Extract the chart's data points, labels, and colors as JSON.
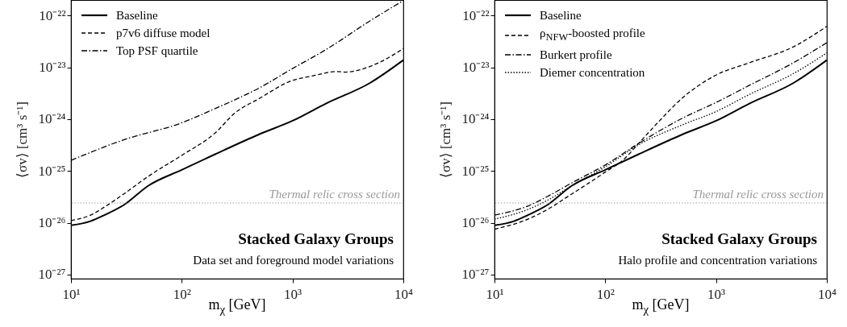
{
  "chart_data": [
    {
      "type": "line",
      "xlabel": "m$_{χ}$ [GeV]",
      "ylabel": "⟨σv⟩ [cm³ s⁻¹]",
      "log": "xy",
      "legend": "top left",
      "xlim": [
        10,
        10000
      ],
      "xticks": [
        {
          "value": 10,
          "label": "10¹"
        },
        {
          "value": 100,
          "label": "10²"
        },
        {
          "value": 1000,
          "label": "10³"
        },
        {
          "value": 10000,
          "label": "10⁴"
        }
      ],
      "ylim": [
        8.3e-28,
        2e-22
      ],
      "yticks": [
        {
          "value": 1e-27,
          "label": "10⁻²⁷"
        },
        {
          "value": 1e-26,
          "label": "10⁻²⁶"
        },
        {
          "value": 1e-25,
          "label": "10⁻²⁵"
        },
        {
          "value": 1e-24,
          "label": "10⁻²⁴"
        },
        {
          "value": 1e-23,
          "label": "10⁻²³"
        },
        {
          "value": 1e-22,
          "label": "10⁻²²"
        }
      ],
      "series": [
        {
          "name": "Baseline",
          "color": "#000000",
          "line_style": "solid",
          "x": [
            10,
            15,
            20,
            30,
            50,
            100,
            200,
            500,
            1000,
            2000,
            5000,
            10000
          ],
          "values": [
            8.9e-27,
            1.07e-26,
            1.4e-26,
            2.2e-26,
            5.2e-26,
            1.05e-25,
            2.1e-25,
            5.1e-25,
            9.3e-25,
            2e-24,
            5e-24,
            1.38e-23
          ]
        },
        {
          "name": "p7v6 diffuse model",
          "color": "#000000",
          "line_style": "dashed",
          "x": [
            10,
            15,
            20,
            30,
            50,
            100,
            200,
            300,
            500,
            1000,
            1500,
            2500,
            3000,
            4000,
            6000,
            10000
          ],
          "values": [
            1.1e-26,
            1.4e-26,
            2e-26,
            3.6e-26,
            7.9e-26,
            2e-25,
            5.4e-25,
            1.3e-24,
            2.5e-24,
            5.6e-24,
            6.8e-24,
            8.3e-24,
            8.1e-24,
            8.9e-24,
            1.23e-23,
            2.3e-23
          ]
        },
        {
          "name": "Top PSF quartile",
          "color": "#000000",
          "line_style": "dashdot",
          "x": [
            10,
            30,
            100,
            200,
            500,
            1000,
            2000,
            5000,
            10000
          ],
          "values": [
            1.6e-25,
            4e-25,
            8.5e-25,
            1.6e-24,
            4e-24,
            9.5e-24,
            2.2e-23,
            7.9e-23,
            1.95e-22
          ]
        }
      ],
      "ref_lines": [
        {
          "axis": "y",
          "value": 2.4e-26,
          "label": "Thermal relic cross section",
          "color": "#999999",
          "line_style": "dotted"
        }
      ],
      "annotations": [
        "Stacked Galaxy Groups",
        "Data set and foreground model variations"
      ]
    },
    {
      "type": "line",
      "xlabel": "m$_{χ}$ [GeV]",
      "ylabel": "⟨σv⟩ [cm³ s⁻¹]",
      "log": "xy",
      "legend": "top left",
      "xlim": [
        10,
        10000
      ],
      "xticks": [
        {
          "value": 10,
          "label": "10¹"
        },
        {
          "value": 100,
          "label": "10²"
        },
        {
          "value": 1000,
          "label": "10³"
        },
        {
          "value": 10000,
          "label": "10⁴"
        }
      ],
      "ylim": [
        8.3e-28,
        2e-22
      ],
      "yticks": [
        {
          "value": 1e-27,
          "label": "10⁻²⁷"
        },
        {
          "value": 1e-26,
          "label": "10⁻²⁶"
        },
        {
          "value": 1e-25,
          "label": "10⁻²⁵"
        },
        {
          "value": 1e-24,
          "label": "10⁻²⁴"
        },
        {
          "value": 1e-23,
          "label": "10⁻²³"
        },
        {
          "value": 1e-22,
          "label": "10⁻²²"
        }
      ],
      "series": [
        {
          "name": "Baseline",
          "color": "#000000",
          "line_style": "solid",
          "x": [
            10,
            15,
            20,
            30,
            50,
            100,
            200,
            500,
            1000,
            2000,
            5000,
            10000
          ],
          "values": [
            8.9e-27,
            1.07e-26,
            1.4e-26,
            2.2e-26,
            5.2e-26,
            1.05e-25,
            2.1e-25,
            5.1e-25,
            9.3e-25,
            2e-24,
            5e-24,
            1.38e-23
          ]
        },
        {
          "name": "ρ$_{NFW}$-boosted profile",
          "color": "#000000",
          "line_style": "dashed",
          "x": [
            10,
            20,
            30,
            50,
            100,
            150,
            200,
            300,
            500,
            700,
            1000,
            2000,
            5000,
            10000
          ],
          "values": [
            7.5e-27,
            1.17e-26,
            1.8e-26,
            3.6e-26,
            9.5e-26,
            1.74e-25,
            3.4e-25,
            8.7e-25,
            2.6e-24,
            4.5e-24,
            7.1e-24,
            1.23e-23,
            2.5e-23,
            6.2e-23
          ]
        },
        {
          "name": "Burkert profile",
          "color": "#000000",
          "line_style": "dashdot",
          "x": [
            10,
            20,
            30,
            50,
            100,
            200,
            500,
            1000,
            2000,
            5000,
            10000
          ],
          "values": [
            1.4e-26,
            2.1e-26,
            3.2e-26,
            5.9e-26,
            1.3e-25,
            3.4e-25,
            1.05e-24,
            2.1e-24,
            4.5e-24,
            1.23e-23,
            3e-23
          ]
        },
        {
          "name": "Diemer concentration",
          "color": "#000000",
          "line_style": "dotted",
          "x": [
            10,
            20,
            30,
            50,
            100,
            200,
            500,
            1000,
            2000,
            5000,
            10000
          ],
          "values": [
            1.17e-26,
            1.8e-26,
            2.7e-26,
            5.2e-26,
            1.2e-25,
            3.2e-25,
            7.8e-25,
            1.4e-24,
            3e-24,
            7.6e-24,
            1.9e-23
          ]
        }
      ],
      "ref_lines": [
        {
          "axis": "y",
          "value": 2.4e-26,
          "label": "Thermal relic cross section",
          "color": "#999999",
          "line_style": "dotted"
        }
      ],
      "annotations": [
        "Stacked Galaxy Groups",
        "Halo profile and concentration variations"
      ]
    }
  ]
}
